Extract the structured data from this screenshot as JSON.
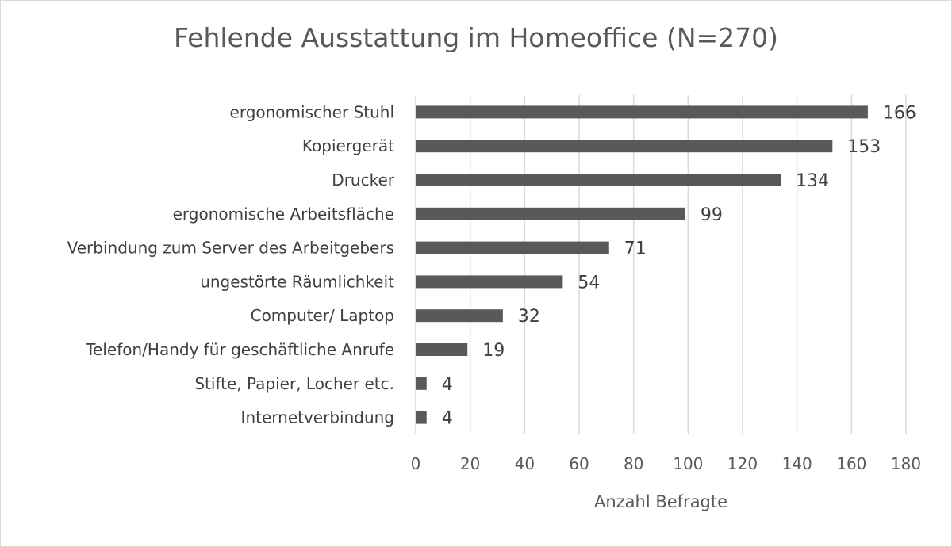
{
  "chart_data": {
    "type": "bar",
    "orientation": "horizontal",
    "title": "Fehlende Ausstattung im Homeoffice (N=270)",
    "xlabel": "Anzahl Befragte",
    "ylabel": "",
    "xlim": [
      0,
      180
    ],
    "xticks": [
      0,
      20,
      40,
      60,
      80,
      100,
      120,
      140,
      160,
      180
    ],
    "grid": true,
    "data_labels": true,
    "bar_color": "#595959",
    "categories": [
      "ergonomischer Stuhl",
      "Kopiergerät",
      "Drucker",
      "ergonomische Arbeitsfläche",
      "Verbindung zum Server des Arbeitgebers",
      "ungestörte Räumlichkeit",
      "Computer/ Laptop",
      "Telefon/Handy für geschäftliche Anrufe",
      "Stifte, Papier, Locher etc.",
      "Internetverbindung"
    ],
    "values": [
      166,
      153,
      134,
      99,
      71,
      54,
      32,
      19,
      4,
      4
    ]
  }
}
